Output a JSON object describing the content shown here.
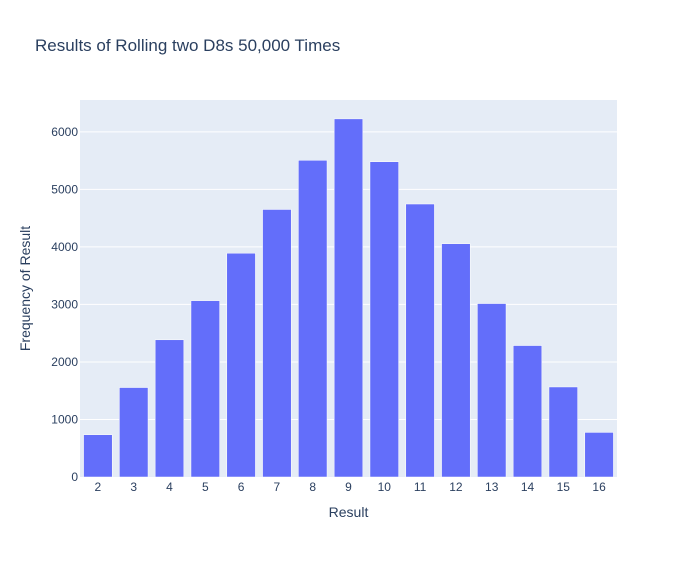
{
  "chart_data": {
    "type": "bar",
    "title": "Results of Rolling two D8s 50,000 Times",
    "xlabel": "Result",
    "ylabel": "Frequency of Result",
    "categories": [
      "2",
      "3",
      "4",
      "5",
      "6",
      "7",
      "8",
      "9",
      "10",
      "11",
      "12",
      "13",
      "14",
      "15",
      "16"
    ],
    "values": [
      735,
      1555,
      2385,
      3065,
      3890,
      4650,
      5505,
      6225,
      5480,
      4745,
      4055,
      3015,
      2285,
      1565,
      775
    ],
    "yticks": [
      0,
      1000,
      2000,
      3000,
      4000,
      5000,
      6000
    ],
    "ytick_labels": [
      "0",
      "1000",
      "2000",
      "3000",
      "4000",
      "5000",
      "6000"
    ],
    "ylim": [
      0,
      6553
    ],
    "grid": true,
    "colors": {
      "bar": "#636efa",
      "plot_background": "#e5ecf6",
      "grid": "#ffffff",
      "text": "#2a3f5f"
    }
  }
}
